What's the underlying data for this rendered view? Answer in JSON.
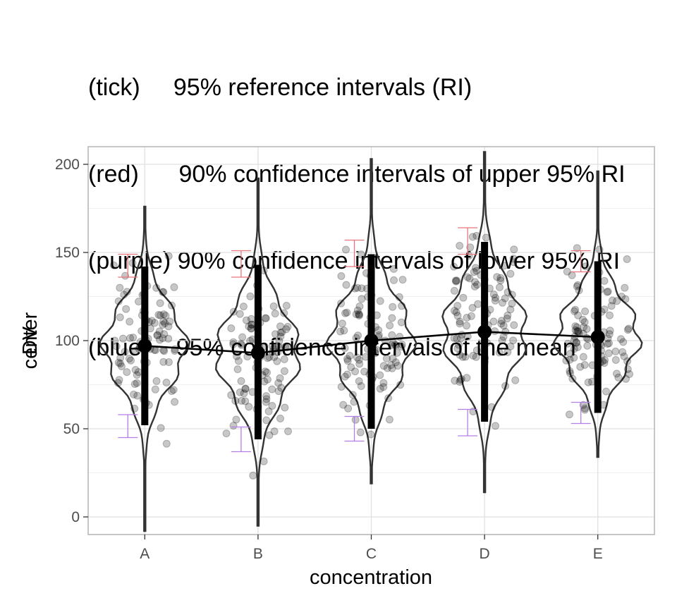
{
  "chart_data": {
    "type": "violin",
    "title_lines": [
      "(tick)     95% reference intervals (RI)",
      "(red)      90% confidence intervals of upper 95% RI",
      "(purple) 90% confidence intervals of lower 95% RI",
      "(blue)    95% confidence intervals of the mean"
    ],
    "xlabel": "concentration",
    "ylabel_overlap": [
      "center",
      "DV"
    ],
    "categories": [
      "A",
      "B",
      "C",
      "D",
      "E"
    ],
    "ylim": [
      -10,
      210
    ],
    "yticks": [
      0,
      50,
      100,
      150,
      200
    ],
    "grid": true,
    "colors": {
      "violin": "#333333",
      "points": "#000000",
      "upper_ci": "#e8747c",
      "lower_ci": "#b47ee8",
      "line": "#000000"
    },
    "groups": [
      {
        "name": "A",
        "mean": 97,
        "ri": [
          52,
          142
        ],
        "upper_ci": [
          136,
          149
        ],
        "lower_ci": [
          45,
          58
        ],
        "min": -8,
        "max": 176
      },
      {
        "name": "B",
        "mean": 93,
        "ri": [
          44,
          143
        ],
        "upper_ci": [
          136,
          151
        ],
        "lower_ci": [
          37,
          51
        ],
        "min": -5,
        "max": 192
      },
      {
        "name": "C",
        "mean": 100,
        "ri": [
          50,
          149
        ],
        "upper_ci": [
          142,
          157
        ],
        "lower_ci": [
          43,
          57
        ],
        "min": 19,
        "max": 203
      },
      {
        "name": "D",
        "mean": 105,
        "ri": [
          54,
          156
        ],
        "upper_ci": [
          149,
          164
        ],
        "lower_ci": [
          46,
          61
        ],
        "min": 14,
        "max": 207
      },
      {
        "name": "E",
        "mean": 102,
        "ri": [
          59,
          145
        ],
        "upper_ci": [
          139,
          151
        ],
        "lower_ci": [
          53,
          65
        ],
        "min": 34,
        "max": 196
      }
    ]
  }
}
